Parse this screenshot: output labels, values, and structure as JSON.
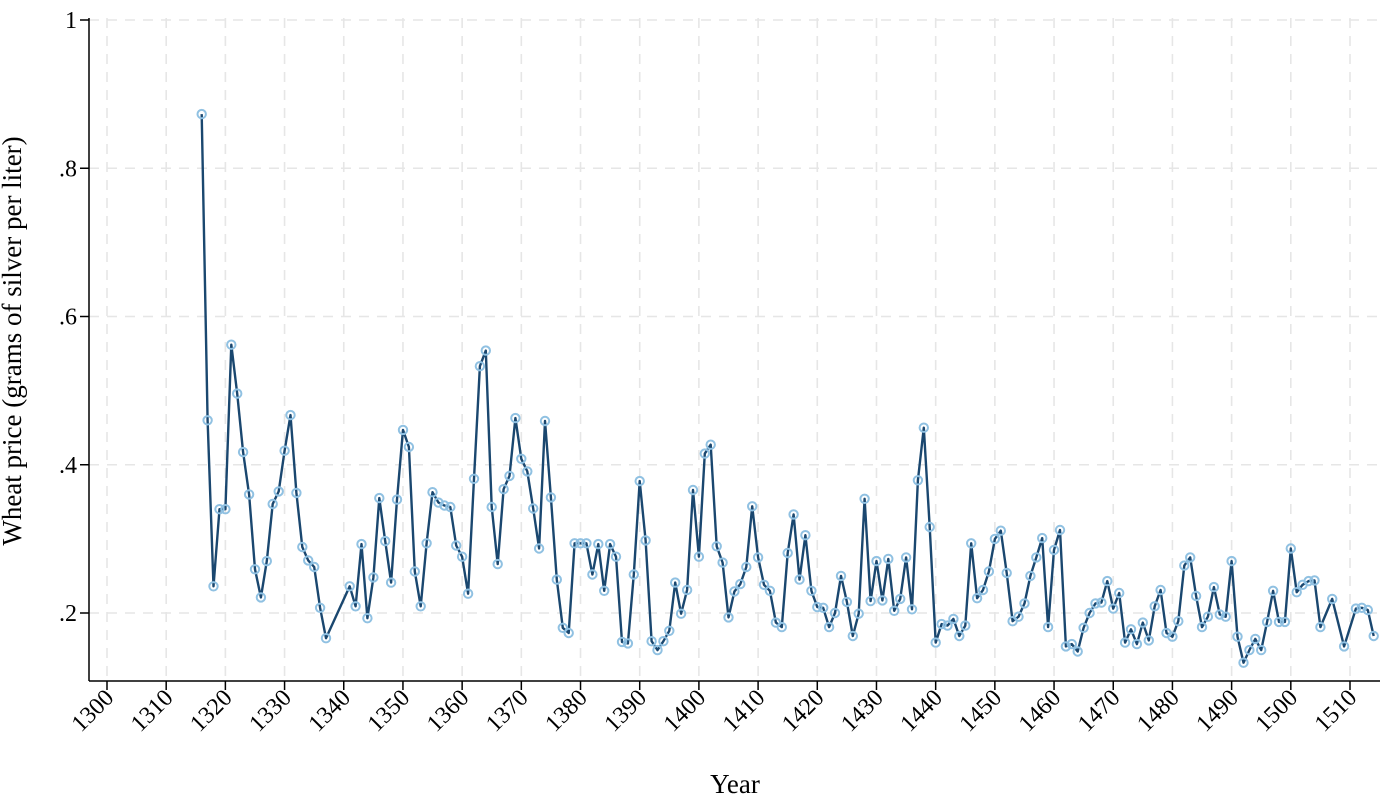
{
  "chart_data": {
    "type": "line",
    "xlabel": "Year",
    "ylabel": "Wheat price (grams of silver per liter)",
    "xlim": [
      1300,
      1513
    ],
    "ylim": [
      0.125,
      1
    ],
    "grid": true,
    "x_ticks": [
      {
        "value": 1300,
        "label": "1300"
      },
      {
        "value": 1310,
        "label": "1310"
      },
      {
        "value": 1320,
        "label": "1320"
      },
      {
        "value": 1330,
        "label": "1330"
      },
      {
        "value": 1340,
        "label": "1340"
      },
      {
        "value": 1350,
        "label": "1350"
      },
      {
        "value": 1360,
        "label": "1360"
      },
      {
        "value": 1370,
        "label": "1370"
      },
      {
        "value": 1380,
        "label": "1380"
      },
      {
        "value": 1390,
        "label": "1390"
      },
      {
        "value": 1400,
        "label": "1400"
      },
      {
        "value": 1410,
        "label": "1410"
      },
      {
        "value": 1420,
        "label": "1420"
      },
      {
        "value": 1430,
        "label": "1430"
      },
      {
        "value": 1440,
        "label": "1440"
      },
      {
        "value": 1450,
        "label": "1450"
      },
      {
        "value": 1460,
        "label": "1460"
      },
      {
        "value": 1470,
        "label": "1470"
      },
      {
        "value": 1480,
        "label": "1480"
      },
      {
        "value": 1490,
        "label": "1490"
      },
      {
        "value": 1500,
        "label": "1500"
      },
      {
        "value": 1510,
        "label": "1510"
      }
    ],
    "y_ticks": [
      {
        "value": 0.2,
        "label": ".2"
      },
      {
        "value": 0.4,
        "label": ".4"
      },
      {
        "value": 0.6,
        "label": ".6"
      },
      {
        "value": 0.8,
        "label": ".8"
      },
      {
        "value": 1,
        "label": "1"
      }
    ],
    "colors": {
      "line": "#1a476f",
      "marker": "#90c1e2",
      "grid": "#e6e6e6"
    },
    "series": [
      {
        "points": [
          [
            1316,
            0.873
          ],
          [
            1317,
            0.46
          ],
          [
            1318,
            0.236
          ],
          [
            1319,
            0.34
          ],
          [
            1320,
            0.34
          ],
          [
            1321,
            0.562
          ],
          [
            1322,
            0.496
          ],
          [
            1323,
            0.417
          ],
          [
            1324,
            0.36
          ],
          [
            1325,
            0.259
          ],
          [
            1326,
            0.221
          ],
          [
            1327,
            0.27
          ],
          [
            1328,
            0.347
          ],
          [
            1329,
            0.364
          ],
          [
            1330,
            0.419
          ],
          [
            1331,
            0.467
          ],
          [
            1332,
            0.362
          ],
          [
            1333,
            0.289
          ],
          [
            1334,
            0.271
          ],
          [
            1335,
            0.262
          ],
          [
            1336,
            0.207
          ],
          [
            1337,
            0.166
          ],
          [
            1341,
            0.236
          ],
          [
            1342,
            0.209
          ],
          [
            1343,
            0.293
          ],
          [
            1344,
            0.193
          ],
          [
            1345,
            0.248
          ],
          [
            1346,
            0.355
          ],
          [
            1347,
            0.297
          ],
          [
            1348,
            0.241
          ],
          [
            1349,
            0.353
          ],
          [
            1350,
            0.447
          ],
          [
            1351,
            0.424
          ],
          [
            1352,
            0.256
          ],
          [
            1353,
            0.209
          ],
          [
            1354,
            0.294
          ],
          [
            1355,
            0.363
          ],
          [
            1356,
            0.349
          ],
          [
            1357,
            0.345
          ],
          [
            1358,
            0.343
          ],
          [
            1359,
            0.291
          ],
          [
            1360,
            0.276
          ],
          [
            1361,
            0.226
          ],
          [
            1362,
            0.381
          ],
          [
            1363,
            0.533
          ],
          [
            1364,
            0.554
          ],
          [
            1365,
            0.343
          ],
          [
            1366,
            0.266
          ],
          [
            1367,
            0.367
          ],
          [
            1368,
            0.385
          ],
          [
            1369,
            0.463
          ],
          [
            1370,
            0.408
          ],
          [
            1371,
            0.391
          ],
          [
            1372,
            0.341
          ],
          [
            1373,
            0.287
          ],
          [
            1374,
            0.459
          ],
          [
            1375,
            0.356
          ],
          [
            1376,
            0.245
          ],
          [
            1377,
            0.18
          ],
          [
            1378,
            0.173
          ],
          [
            1379,
            0.294
          ],
          [
            1380,
            0.294
          ],
          [
            1381,
            0.294
          ],
          [
            1382,
            0.252
          ],
          [
            1383,
            0.293
          ],
          [
            1384,
            0.23
          ],
          [
            1385,
            0.293
          ],
          [
            1386,
            0.276
          ],
          [
            1387,
            0.161
          ],
          [
            1388,
            0.159
          ],
          [
            1389,
            0.252
          ],
          [
            1390,
            0.378
          ],
          [
            1391,
            0.298
          ],
          [
            1392,
            0.162
          ],
          [
            1393,
            0.15
          ],
          [
            1394,
            0.162
          ],
          [
            1395,
            0.176
          ],
          [
            1396,
            0.241
          ],
          [
            1397,
            0.199
          ],
          [
            1398,
            0.231
          ],
          [
            1399,
            0.366
          ],
          [
            1400,
            0.276
          ],
          [
            1401,
            0.415
          ],
          [
            1402,
            0.427
          ],
          [
            1403,
            0.29
          ],
          [
            1404,
            0.268
          ],
          [
            1405,
            0.194
          ],
          [
            1406,
            0.229
          ],
          [
            1407,
            0.239
          ],
          [
            1408,
            0.262
          ],
          [
            1409,
            0.344
          ],
          [
            1410,
            0.275
          ],
          [
            1411,
            0.238
          ],
          [
            1412,
            0.23
          ],
          [
            1413,
            0.187
          ],
          [
            1414,
            0.181
          ],
          [
            1415,
            0.281
          ],
          [
            1416,
            0.333
          ],
          [
            1417,
            0.245
          ],
          [
            1418,
            0.305
          ],
          [
            1419,
            0.23
          ],
          [
            1420,
            0.208
          ],
          [
            1421,
            0.207
          ],
          [
            1422,
            0.181
          ],
          [
            1423,
            0.2
          ],
          [
            1424,
            0.25
          ],
          [
            1425,
            0.215
          ],
          [
            1426,
            0.169
          ],
          [
            1427,
            0.199
          ],
          [
            1428,
            0.354
          ],
          [
            1429,
            0.216
          ],
          [
            1430,
            0.27
          ],
          [
            1431,
            0.217
          ],
          [
            1432,
            0.273
          ],
          [
            1433,
            0.203
          ],
          [
            1434,
            0.219
          ],
          [
            1435,
            0.275
          ],
          [
            1436,
            0.205
          ],
          [
            1437,
            0.379
          ],
          [
            1438,
            0.45
          ],
          [
            1439,
            0.316
          ],
          [
            1440,
            0.16
          ],
          [
            1441,
            0.185
          ],
          [
            1442,
            0.183
          ],
          [
            1443,
            0.192
          ],
          [
            1444,
            0.169
          ],
          [
            1445,
            0.183
          ],
          [
            1446,
            0.294
          ],
          [
            1447,
            0.22
          ],
          [
            1448,
            0.231
          ],
          [
            1449,
            0.256
          ],
          [
            1450,
            0.3
          ],
          [
            1451,
            0.311
          ],
          [
            1452,
            0.254
          ],
          [
            1453,
            0.189
          ],
          [
            1454,
            0.195
          ],
          [
            1455,
            0.213
          ],
          [
            1456,
            0.25
          ],
          [
            1457,
            0.275
          ],
          [
            1458,
            0.301
          ],
          [
            1459,
            0.181
          ],
          [
            1460,
            0.285
          ],
          [
            1461,
            0.312
          ],
          [
            1462,
            0.155
          ],
          [
            1463,
            0.158
          ],
          [
            1464,
            0.148
          ],
          [
            1465,
            0.18
          ],
          [
            1466,
            0.2
          ],
          [
            1467,
            0.213
          ],
          [
            1468,
            0.214
          ],
          [
            1469,
            0.243
          ],
          [
            1470,
            0.206
          ],
          [
            1471,
            0.227
          ],
          [
            1472,
            0.16
          ],
          [
            1473,
            0.178
          ],
          [
            1474,
            0.158
          ],
          [
            1475,
            0.187
          ],
          [
            1476,
            0.163
          ],
          [
            1477,
            0.209
          ],
          [
            1478,
            0.231
          ],
          [
            1479,
            0.173
          ],
          [
            1480,
            0.168
          ],
          [
            1481,
            0.189
          ],
          [
            1482,
            0.264
          ],
          [
            1483,
            0.275
          ],
          [
            1484,
            0.223
          ],
          [
            1485,
            0.181
          ],
          [
            1486,
            0.195
          ],
          [
            1487,
            0.235
          ],
          [
            1488,
            0.198
          ],
          [
            1489,
            0.195
          ],
          [
            1490,
            0.27
          ],
          [
            1491,
            0.168
          ],
          [
            1492,
            0.133
          ],
          [
            1493,
            0.15
          ],
          [
            1494,
            0.165
          ],
          [
            1495,
            0.15
          ],
          [
            1496,
            0.188
          ],
          [
            1497,
            0.23
          ],
          [
            1498,
            0.188
          ],
          [
            1499,
            0.188
          ],
          [
            1500,
            0.287
          ],
          [
            1501,
            0.228
          ],
          [
            1502,
            0.238
          ],
          [
            1503,
            0.243
          ],
          [
            1504,
            0.244
          ],
          [
            1505,
            0.181
          ],
          [
            1507,
            0.219
          ],
          [
            1509,
            0.155
          ],
          [
            1511,
            0.206
          ],
          [
            1512,
            0.207
          ],
          [
            1513,
            0.204
          ],
          [
            1514,
            0.169
          ]
        ]
      }
    ]
  }
}
